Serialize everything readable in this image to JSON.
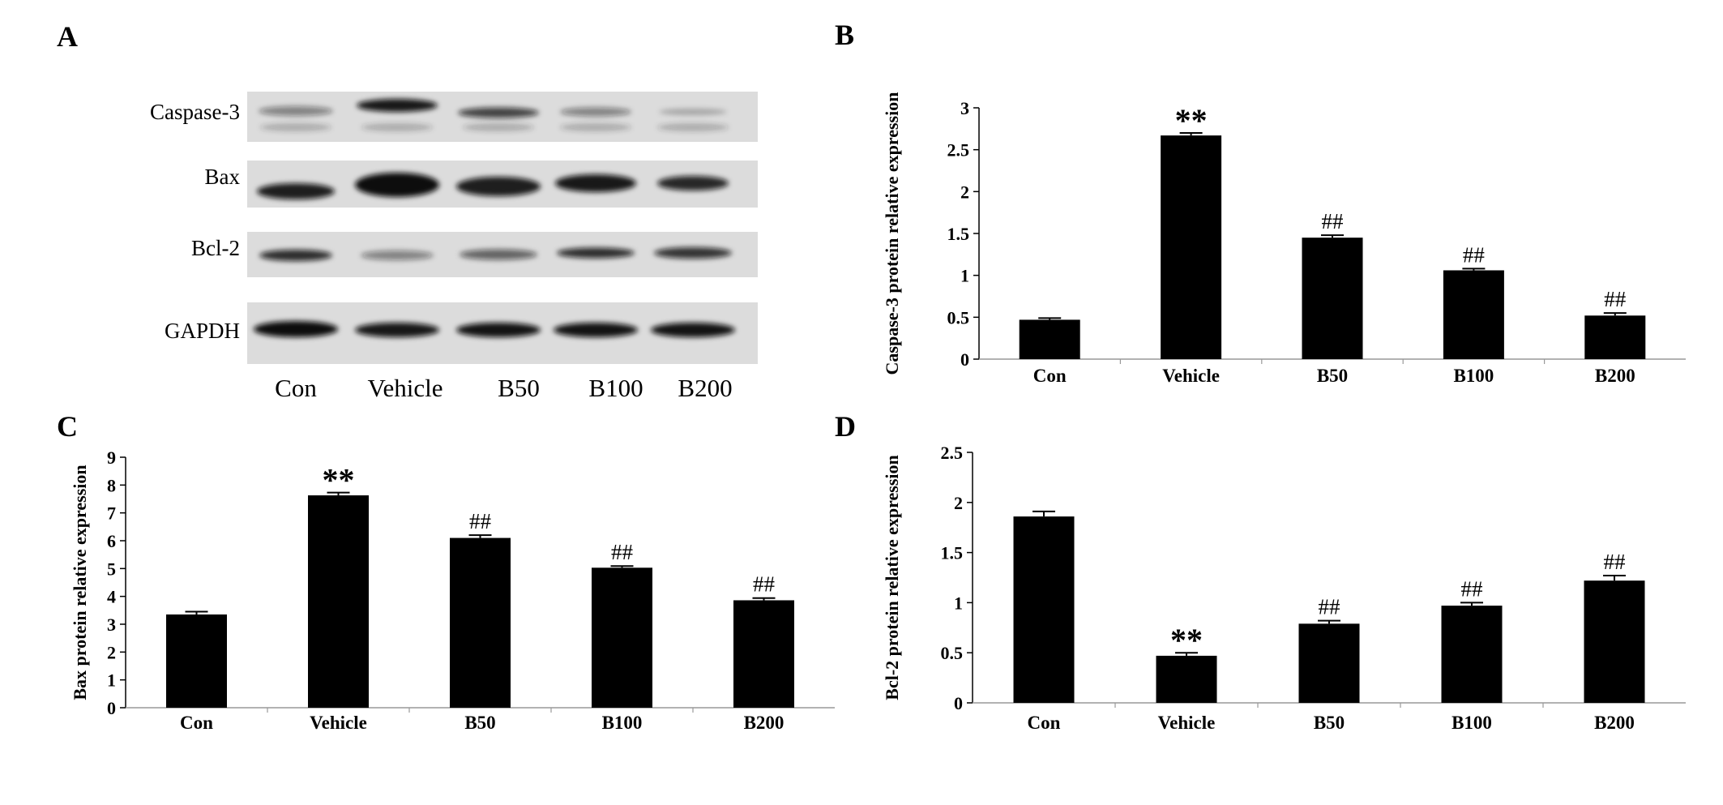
{
  "panels": {
    "a": "A",
    "b": "B",
    "c": "C",
    "d": "D"
  },
  "blot": {
    "rows": [
      "Caspase-3",
      "Bax",
      "Bcl-2",
      "GAPDH"
    ],
    "lanes": [
      "Con",
      "Vehicle",
      "B50",
      "B100",
      "B200"
    ]
  },
  "chart_data": [
    {
      "type": "bar",
      "panel": "B",
      "categories": [
        "Con",
        "Vehicle",
        "B50",
        "B100",
        "B200"
      ],
      "values": [
        0.47,
        2.67,
        1.45,
        1.06,
        0.52
      ],
      "errors": [
        0.02,
        0.03,
        0.03,
        0.02,
        0.03
      ],
      "annotations": [
        "",
        "**",
        "##",
        "##",
        "##"
      ],
      "xlabel": "",
      "ylabel": "Caspase-3 protein relative expression",
      "ylim": [
        0,
        3
      ],
      "yticks": [
        0,
        0.5,
        1,
        1.5,
        2,
        2.5,
        3
      ],
      "ytick_labels": [
        "0",
        "0.5",
        "1",
        "1.5",
        "2",
        "2.5",
        "3"
      ],
      "bar_color": "#000000"
    },
    {
      "type": "bar",
      "panel": "C",
      "categories": [
        "Con",
        "Vehicle",
        "B50",
        "B100",
        "B200"
      ],
      "values": [
        3.35,
        7.63,
        6.1,
        5.03,
        3.86
      ],
      "errors": [
        0.1,
        0.1,
        0.1,
        0.06,
        0.08
      ],
      "annotations": [
        "",
        "**",
        "##",
        "##",
        "##"
      ],
      "xlabel": "",
      "ylabel": "Bax protein relative expression",
      "ylim": [
        0,
        9
      ],
      "yticks": [
        0,
        1,
        2,
        3,
        4,
        5,
        6,
        7,
        8,
        9
      ],
      "ytick_labels": [
        "0",
        "1",
        "2",
        "3",
        "4",
        "5",
        "6",
        "7",
        "8",
        "9"
      ],
      "bar_color": "#000000"
    },
    {
      "type": "bar",
      "panel": "D",
      "categories": [
        "Con",
        "Vehicle",
        "B50",
        "B100",
        "B200"
      ],
      "values": [
        1.86,
        0.47,
        0.79,
        0.97,
        1.22
      ],
      "errors": [
        0.05,
        0.03,
        0.03,
        0.03,
        0.05
      ],
      "annotations": [
        "",
        "**",
        "##",
        "##",
        "##"
      ],
      "xlabel": "",
      "ylabel": "Bcl-2 protein relative expression",
      "ylim": [
        0,
        2.5
      ],
      "yticks": [
        0,
        0.5,
        1,
        1.5,
        2,
        2.5
      ],
      "ytick_labels": [
        "0",
        "0.5",
        "1",
        "1.5",
        "2",
        "2.5"
      ],
      "bar_color": "#000000"
    }
  ]
}
